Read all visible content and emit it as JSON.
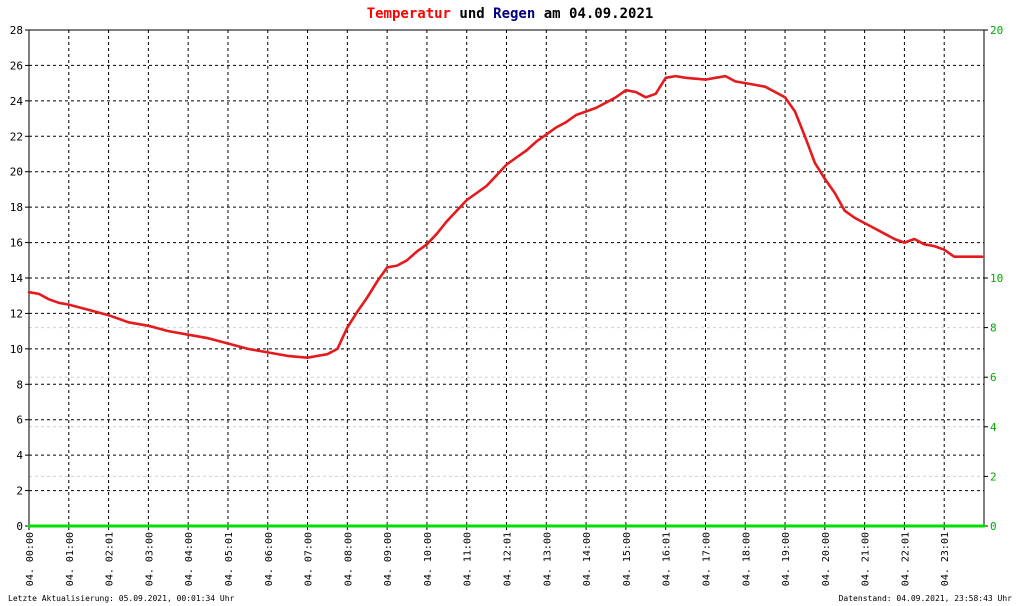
{
  "title": {
    "part1": "Temperatur",
    "part2": " und ",
    "part3": "Regen",
    "part4": " am 04.09.2021"
  },
  "footer": {
    "left": "Letzte Aktualisierung: 05.09.2021, 00:01:34 Uhr",
    "right": "Datenstand: 04.09.2021, 23:58:43 Uhr"
  },
  "colors": {
    "temperature": "#e41a1c",
    "rain": "#00dd00",
    "title_temp": "#ff0000",
    "title_rain": "#000080",
    "right_axis": "#00aa00",
    "grid": "#000000",
    "grid_faint": "#d0d0d0"
  },
  "chart_data": {
    "type": "line",
    "x_ticks": [
      "04. 00:00",
      "04. 01:00",
      "04. 02:01",
      "04. 03:00",
      "04. 04:00",
      "04. 05:01",
      "04. 06:00",
      "04. 07:00",
      "04. 08:00",
      "04. 09:00",
      "04. 10:00",
      "04. 11:00",
      "04. 12:01",
      "04. 13:00",
      "04. 14:00",
      "04. 15:00",
      "04. 16:01",
      "04. 17:00",
      "04. 18:00",
      "04. 19:00",
      "04. 20:00",
      "04. 21:00",
      "04. 22:01",
      "04. 23:01"
    ],
    "y_left": {
      "ylim": [
        0,
        28
      ],
      "ticks": [
        0,
        2,
        4,
        6,
        8,
        10,
        12,
        14,
        16,
        18,
        20,
        22,
        24,
        26,
        28
      ]
    },
    "y_right": {
      "ylim": [
        0,
        20
      ],
      "ticks": [
        0,
        2,
        4,
        6,
        8,
        10,
        20
      ]
    },
    "series": [
      {
        "name": "Temperatur",
        "axis": "left",
        "x_hours": [
          0,
          0.25,
          0.5,
          0.75,
          1,
          1.5,
          2,
          2.5,
          3,
          3.5,
          4,
          4.5,
          5,
          5.5,
          6,
          6.5,
          7,
          7.25,
          7.5,
          7.75,
          8,
          8.25,
          8.5,
          8.75,
          9,
          9.25,
          9.5,
          9.75,
          10,
          10.25,
          10.5,
          10.75,
          11,
          11.25,
          11.5,
          11.75,
          12,
          12.25,
          12.5,
          12.75,
          13,
          13.25,
          13.5,
          13.75,
          14,
          14.25,
          14.5,
          14.75,
          15,
          15.25,
          15.5,
          15.75,
          16,
          16.25,
          16.5,
          17,
          17.25,
          17.5,
          17.75,
          18,
          18.25,
          18.5,
          18.75,
          19,
          19.25,
          19.5,
          19.75,
          20,
          20.25,
          20.5,
          20.75,
          21,
          21.25,
          21.5,
          21.75,
          22,
          22.25,
          22.5,
          22.75,
          23,
          23.25,
          23.5,
          23.75,
          23.95
        ],
        "values": [
          13.2,
          13.1,
          12.8,
          12.6,
          12.5,
          12.2,
          11.9,
          11.5,
          11.3,
          11.0,
          10.8,
          10.6,
          10.3,
          10.0,
          9.8,
          9.6,
          9.5,
          9.6,
          9.7,
          10.0,
          11.2,
          12.1,
          12.9,
          13.8,
          14.6,
          14.7,
          15.0,
          15.5,
          15.9,
          16.5,
          17.2,
          17.8,
          18.4,
          18.8,
          19.2,
          19.8,
          20.4,
          20.8,
          21.2,
          21.7,
          22.1,
          22.5,
          22.8,
          23.2,
          23.4,
          23.6,
          23.9,
          24.2,
          24.6,
          24.5,
          24.2,
          24.4,
          25.3,
          25.4,
          25.3,
          25.2,
          25.3,
          25.4,
          25.1,
          25.0,
          24.9,
          24.8,
          24.5,
          24.2,
          23.4,
          22.0,
          20.5,
          19.6,
          18.8,
          17.8,
          17.4,
          17.1,
          16.8,
          16.5,
          16.2,
          16.0,
          16.2,
          15.9,
          15.8,
          15.6,
          15.2,
          15.2,
          15.2,
          15.2
        ]
      },
      {
        "name": "Regen",
        "axis": "right",
        "x_hours": [
          0,
          24
        ],
        "values": [
          0,
          0
        ]
      }
    ]
  }
}
